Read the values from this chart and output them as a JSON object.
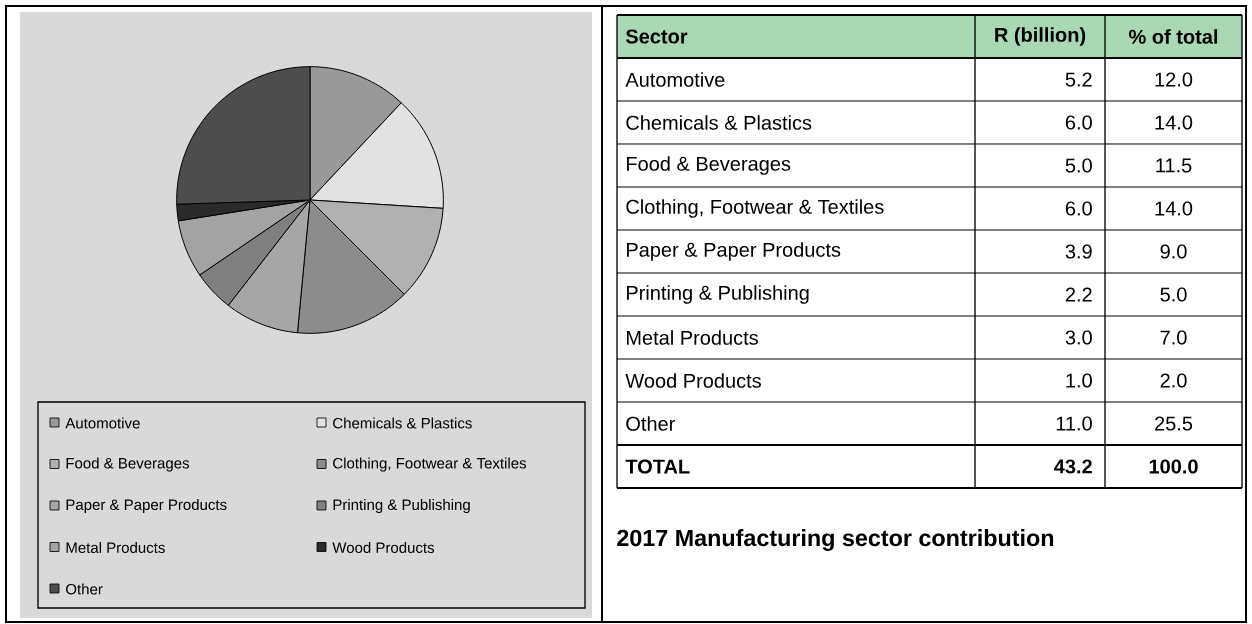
{
  "chart_data": {
    "type": "pie",
    "title": "2017 Manufacturing sector contribution",
    "categories": [
      "Automotive",
      "Chemicals & Plastics",
      "Food & Beverages",
      "Clothing, Footwear & Textiles",
      "Paper & Paper Products",
      "Printing & Publishing",
      "Metal Products",
      "Wood Products",
      "Other"
    ],
    "values": [
      12.0,
      14.0,
      11.5,
      14.0,
      9.0,
      5.0,
      7.0,
      2.0,
      25.5
    ],
    "colors": [
      "#999999",
      "#e2e2e2",
      "#b0b0b0",
      "#8c8c8c",
      "#a6a6a6",
      "#808080",
      "#a3a3a3",
      "#2a2a2a",
      "#4d4d4d"
    ],
    "annotations": [
      "Sector",
      "R (billion)",
      "% of total",
      "5.2",
      "6.0",
      "5.0",
      "6.0",
      "3.9",
      "2.2",
      "3.0",
      "1.0",
      "11.0",
      "12.0",
      "14.0",
      "11.5",
      "14.0",
      "9.0",
      "5.0",
      "7.0",
      "2.0",
      "25.5",
      "TOTAL",
      "43.2",
      "100.0"
    ],
    "legend": "bottom"
  }
}
